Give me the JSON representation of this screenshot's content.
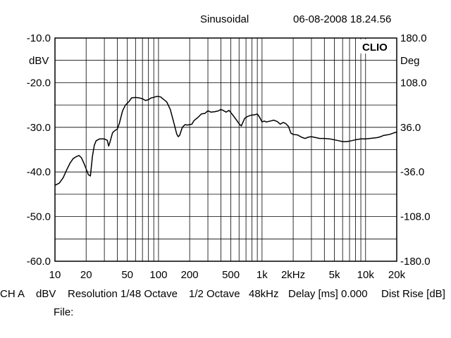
{
  "header": {
    "mode": "Sinusoidal",
    "timestamp": "06-08-2008 18.24.56"
  },
  "footer": {
    "channel": "CH A",
    "unit": "dBV",
    "resolution": "Resolution 1/48 Octave",
    "smoothing": "1/2 Octave",
    "sample_rate": "48kHz",
    "delay": "Delay [ms] 0.000",
    "dist_rise": "Dist Rise [dB]",
    "file_label": "File:"
  },
  "chart_data": {
    "type": "line",
    "x_scale": "log",
    "xlim": [
      10,
      20000
    ],
    "ylim": [
      -60,
      -10
    ],
    "y2lim": [
      -180,
      180
    ],
    "grid": true,
    "logo": "CLIO",
    "left_axis_unit": "dBV",
    "right_axis_unit": "Deg",
    "x_ticks": [
      {
        "value": 10,
        "label": "10"
      },
      {
        "value": 20,
        "label": "20"
      },
      {
        "value": 50,
        "label": "50"
      },
      {
        "value": 100,
        "label": "100"
      },
      {
        "value": 200,
        "label": "200"
      },
      {
        "value": 500,
        "label": "500"
      },
      {
        "value": 1000,
        "label": "1k"
      },
      {
        "value": 2000,
        "label": "2kHz"
      },
      {
        "value": 5000,
        "label": "5k"
      },
      {
        "value": 10000,
        "label": "10k"
      },
      {
        "value": 20000,
        "label": "20k"
      }
    ],
    "y_ticks": [
      {
        "value": -10,
        "label": "-10.0"
      },
      {
        "value": -20,
        "label": "-20.0"
      },
      {
        "value": -30,
        "label": "-30.0"
      },
      {
        "value": -40,
        "label": "-40.0"
      },
      {
        "value": -50,
        "label": "-50.0"
      },
      {
        "value": -60,
        "label": "-60.0"
      }
    ],
    "y2_ticks": [
      {
        "value": 180,
        "label": "180.0"
      },
      {
        "value": 108,
        "label": "108.0"
      },
      {
        "value": 36,
        "label": "36.0"
      },
      {
        "value": -36,
        "label": "-36.0"
      },
      {
        "value": -108,
        "label": "-108.0"
      },
      {
        "value": -180,
        "label": "-180.0"
      }
    ],
    "series": [
      {
        "color": "#000000",
        "points": [
          [
            10,
            -43.0
          ],
          [
            11,
            -42.5
          ],
          [
            12,
            -41.3
          ],
          [
            13,
            -39.5
          ],
          [
            14,
            -38.0
          ],
          [
            15,
            -37.0
          ],
          [
            16,
            -36.6
          ],
          [
            17,
            -36.3
          ],
          [
            18,
            -36.8
          ],
          [
            19,
            -38.0
          ],
          [
            20,
            -39.3
          ],
          [
            21,
            -40.6
          ],
          [
            22,
            -40.9
          ],
          [
            23,
            -36.5
          ],
          [
            24,
            -34.0
          ],
          [
            25,
            -33.0
          ],
          [
            27,
            -32.6
          ],
          [
            30,
            -32.6
          ],
          [
            32,
            -32.9
          ],
          [
            33,
            -34.2
          ],
          [
            34,
            -33.3
          ],
          [
            36,
            -31.2
          ],
          [
            38,
            -30.7
          ],
          [
            40,
            -30.4
          ],
          [
            42,
            -29.0
          ],
          [
            45,
            -26.3
          ],
          [
            48,
            -25.0
          ],
          [
            52,
            -24.2
          ],
          [
            55,
            -23.4
          ],
          [
            60,
            -23.3
          ],
          [
            65,
            -23.4
          ],
          [
            70,
            -23.6
          ],
          [
            75,
            -24.0
          ],
          [
            80,
            -23.8
          ],
          [
            85,
            -23.4
          ],
          [
            90,
            -23.3
          ],
          [
            95,
            -23.1
          ],
          [
            100,
            -23.1
          ],
          [
            105,
            -23.2
          ],
          [
            110,
            -23.6
          ],
          [
            120,
            -24.3
          ],
          [
            130,
            -26.0
          ],
          [
            140,
            -28.8
          ],
          [
            150,
            -31.5
          ],
          [
            155,
            -32.1
          ],
          [
            160,
            -31.8
          ],
          [
            170,
            -30.0
          ],
          [
            180,
            -29.4
          ],
          [
            190,
            -29.5
          ],
          [
            200,
            -29.4
          ],
          [
            210,
            -29.3
          ],
          [
            220,
            -28.5
          ],
          [
            240,
            -27.8
          ],
          [
            260,
            -27.0
          ],
          [
            280,
            -26.9
          ],
          [
            300,
            -26.3
          ],
          [
            320,
            -26.6
          ],
          [
            350,
            -26.5
          ],
          [
            380,
            -26.3
          ],
          [
            400,
            -26.0
          ],
          [
            420,
            -26.2
          ],
          [
            450,
            -26.6
          ],
          [
            480,
            -26.2
          ],
          [
            520,
            -27.2
          ],
          [
            560,
            -28.2
          ],
          [
            600,
            -29.2
          ],
          [
            630,
            -29.7
          ],
          [
            650,
            -29.0
          ],
          [
            680,
            -28.0
          ],
          [
            720,
            -27.6
          ],
          [
            780,
            -27.3
          ],
          [
            850,
            -27.2
          ],
          [
            900,
            -27.0
          ],
          [
            950,
            -27.8
          ],
          [
            1000,
            -28.8
          ],
          [
            1050,
            -28.6
          ],
          [
            1100,
            -28.8
          ],
          [
            1200,
            -28.6
          ],
          [
            1300,
            -28.4
          ],
          [
            1400,
            -28.7
          ],
          [
            1500,
            -29.3
          ],
          [
            1600,
            -28.9
          ],
          [
            1700,
            -29.2
          ],
          [
            1800,
            -29.8
          ],
          [
            1900,
            -31.3
          ],
          [
            2000,
            -31.6
          ],
          [
            2200,
            -31.7
          ],
          [
            2400,
            -32.2
          ],
          [
            2600,
            -32.5
          ],
          [
            2800,
            -32.2
          ],
          [
            3000,
            -32.1
          ],
          [
            3300,
            -32.3
          ],
          [
            3600,
            -32.5
          ],
          [
            4000,
            -32.5
          ],
          [
            4500,
            -32.6
          ],
          [
            5000,
            -32.8
          ],
          [
            5500,
            -33.0
          ],
          [
            6000,
            -33.2
          ],
          [
            6500,
            -33.2
          ],
          [
            7000,
            -33.1
          ],
          [
            8000,
            -32.8
          ],
          [
            9000,
            -32.6
          ],
          [
            10000,
            -32.6
          ],
          [
            11000,
            -32.5
          ],
          [
            12000,
            -32.4
          ],
          [
            13000,
            -32.3
          ],
          [
            14000,
            -32.1
          ],
          [
            15000,
            -31.8
          ],
          [
            16000,
            -31.7
          ],
          [
            17000,
            -31.6
          ],
          [
            18000,
            -31.4
          ],
          [
            19000,
            -31.2
          ],
          [
            20000,
            -31.1
          ]
        ]
      }
    ]
  }
}
